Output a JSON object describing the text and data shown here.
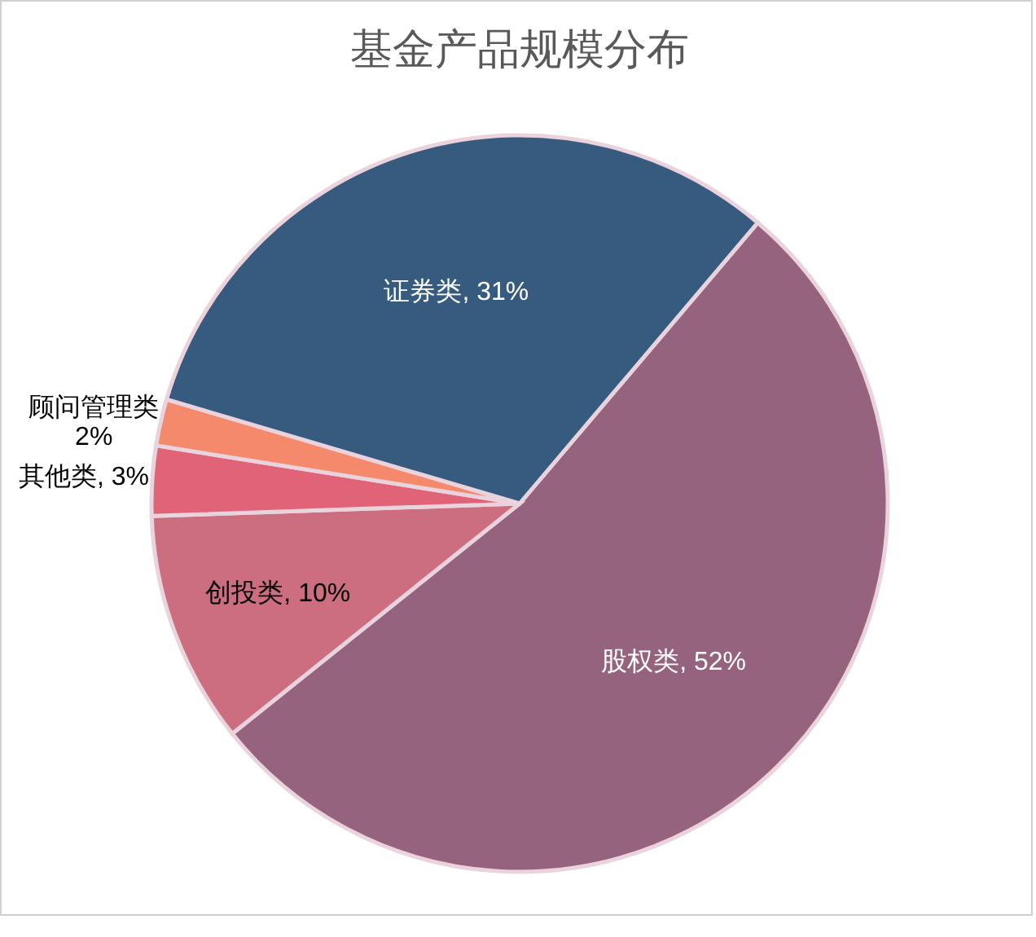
{
  "chart_data": {
    "type": "pie",
    "title": "基金产品规模分布",
    "categories": [
      "股权类",
      "创投类",
      "其他类",
      "顾问管理类",
      "证券类"
    ],
    "values": [
      52,
      10,
      3,
      2,
      31
    ],
    "value_labels": [
      "52%",
      "10%",
      "3%",
      "2%",
      "31%"
    ],
    "colors": [
      "#96637e",
      "#cc6d80",
      "#e06377",
      "#f4896b",
      "#365b7e"
    ]
  }
}
